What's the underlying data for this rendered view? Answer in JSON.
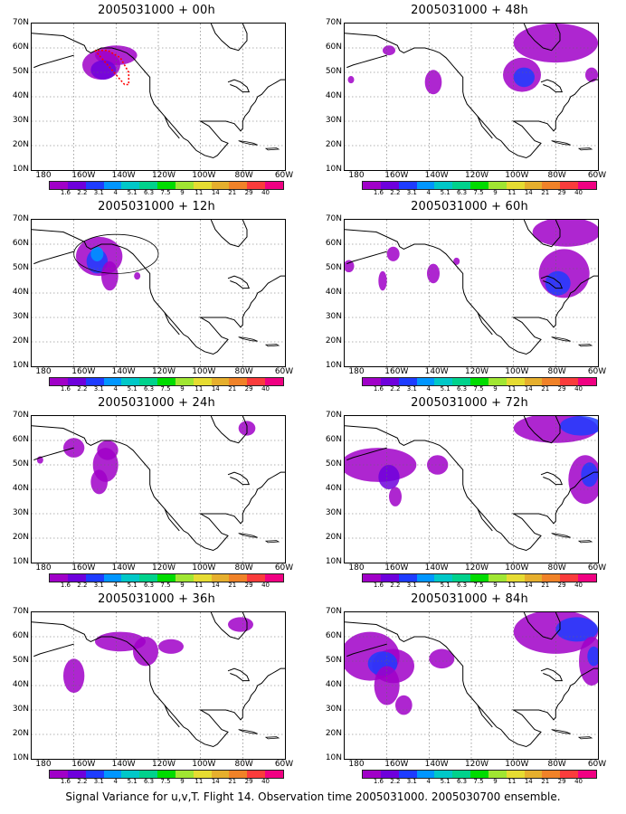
{
  "panels": [
    {
      "title": "2005031000 + 00h",
      "key": "p00"
    },
    {
      "title": "2005031000 + 48h",
      "key": "p48"
    },
    {
      "title": "2005031000 + 12h",
      "key": "p12"
    },
    {
      "title": "2005031000 + 60h",
      "key": "p60"
    },
    {
      "title": "2005031000 + 24h",
      "key": "p24"
    },
    {
      "title": "2005031000 + 72h",
      "key": "p72"
    },
    {
      "title": "2005031000 + 36h",
      "key": "p36"
    },
    {
      "title": "2005031000 + 84h",
      "key": "p84"
    }
  ],
  "lat_labels": [
    "70N",
    "60N",
    "50N",
    "40N",
    "30N",
    "20N",
    "10N"
  ],
  "lon_labels": [
    "180",
    "160W",
    "140W",
    "120W",
    "100W",
    "80W",
    "60W"
  ],
  "colorbar": {
    "labels": [
      "1.6",
      "2.2",
      "3.1",
      "4",
      "5.1",
      "6.3",
      "7.5",
      "9",
      "11",
      "14",
      "21",
      "29",
      "40"
    ],
    "colors": [
      "#a000c8",
      "#6e00dc",
      "#1e3cff",
      "#0096ff",
      "#00c8c8",
      "#00d28c",
      "#00dc00",
      "#a0e632",
      "#e6dc32",
      "#e6af2d",
      "#f08228",
      "#fa3c3c",
      "#f00082"
    ]
  },
  "footer": "Signal Variance for u,v,T. Flight 14. Observation time 2005031000. 2005030700 ensemble."
}
